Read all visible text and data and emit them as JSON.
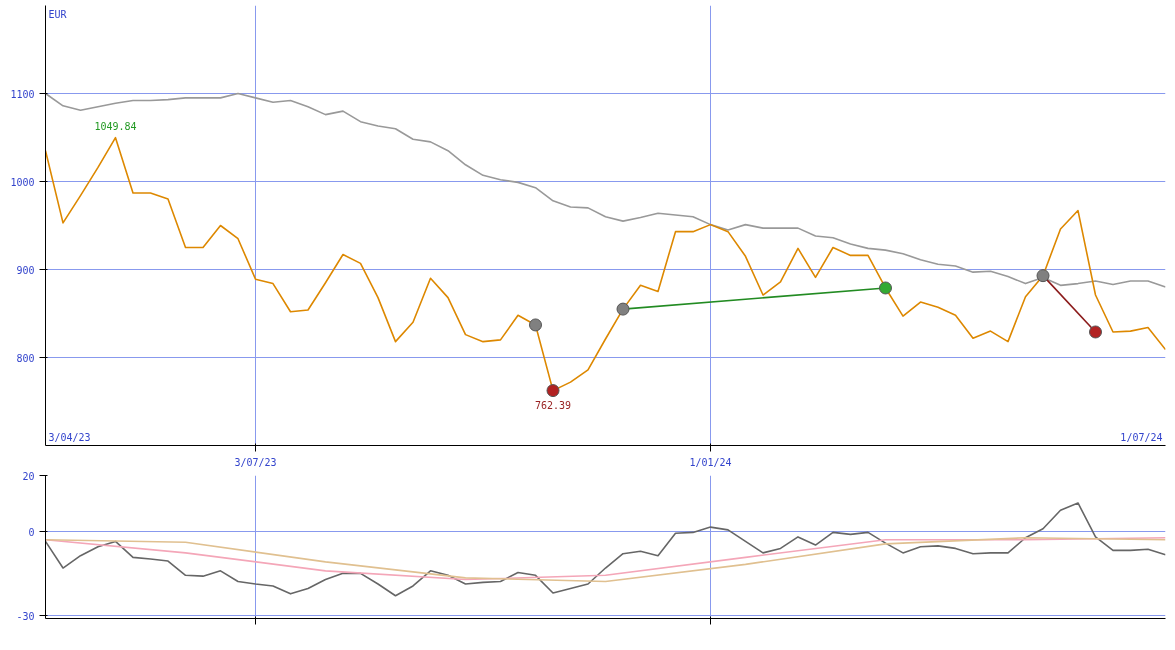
{
  "chart_data": [
    {
      "type": "line",
      "xlim": [
        "2023-04-10",
        "2024-07-01"
      ],
      "ylim": [
        700,
        1200
      ],
      "xticks": [
        {
          "value": "2023-07-03",
          "label": "3/07/23"
        },
        {
          "value": "2024-01-01",
          "label": "1/01/24"
        }
      ],
      "yticks": [
        800,
        900,
        1000,
        1100
      ],
      "grid": true,
      "line_style": "solid",
      "marker": "none",
      "annotations": [
        "EUR",
        "3/04/23",
        "1/07/24",
        {
          "text": "1049.84",
          "x": "2023-05-08",
          "y": 1049.84
        },
        {
          "text": "762.39",
          "x": "2023-10-30",
          "y": 762.39
        }
      ],
      "x": [
        "2023-04-10",
        "2023-04-17",
        "2023-04-24",
        "2023-05-01",
        "2023-05-08",
        "2023-05-15",
        "2023-05-22",
        "2023-05-29",
        "2023-06-05",
        "2023-06-12",
        "2023-06-19",
        "2023-06-26",
        "2023-07-03",
        "2023-07-10",
        "2023-07-17",
        "2023-07-24",
        "2023-07-31",
        "2023-08-07",
        "2023-08-14",
        "2023-08-21",
        "2023-08-28",
        "2023-09-04",
        "2023-09-11",
        "2023-09-18",
        "2023-09-25",
        "2023-10-02",
        "2023-10-09",
        "2023-10-16",
        "2023-10-23",
        "2023-10-30",
        "2023-11-06",
        "2023-11-13",
        "2023-11-20",
        "2023-11-27",
        "2023-12-04",
        "2023-12-11",
        "2023-12-18",
        "2023-12-25",
        "2024-01-01",
        "2024-01-08",
        "2024-01-15",
        "2024-01-22",
        "2024-01-29",
        "2024-02-05",
        "2024-02-12",
        "2024-02-19",
        "2024-02-26",
        "2024-03-04",
        "2024-03-11",
        "2024-03-18",
        "2024-03-25",
        "2024-04-01",
        "2024-04-08",
        "2024-04-15",
        "2024-04-22",
        "2024-04-29",
        "2024-05-06",
        "2024-05-13",
        "2024-05-20",
        "2024-05-27",
        "2024-06-03",
        "2024-06-10",
        "2024-06-17",
        "2024-06-24",
        "2024-07-01"
      ],
      "series": [
        {
          "color": "#999999",
          "values": [
            1100,
            1086,
            1081,
            1085,
            1089,
            1092,
            1092,
            1093,
            1095,
            1095,
            1095,
            1100,
            1095,
            1090,
            1092,
            1085,
            1076,
            1080,
            1068,
            1063,
            1060,
            1048,
            1045,
            1035,
            1019,
            1007,
            1002,
            999,
            993,
            978,
            971,
            970,
            960,
            955,
            959,
            964,
            962,
            960,
            951,
            945,
            951,
            947,
            947,
            947,
            938,
            936,
            929,
            924,
            922,
            918,
            911,
            906,
            904,
            897,
            898,
            892,
            884,
            891,
            882,
            884,
            887,
            883,
            887,
            887,
            880
          ]
        },
        {
          "color": "#dd8800",
          "values": [
            1035,
            953,
            984,
            1016,
            1049.84,
            987,
            987,
            980,
            925,
            925,
            950,
            935,
            889,
            884,
            852,
            854,
            885,
            917,
            907,
            868,
            818,
            840,
            890,
            868,
            826,
            818,
            820,
            848,
            837,
            762.39,
            772,
            786,
            821,
            855,
            882,
            875,
            943,
            943,
            951,
            943,
            915,
            871,
            886,
            924,
            891,
            925,
            916,
            916,
            879,
            847,
            863,
            857,
            848,
            822,
            830,
            818,
            869,
            893,
            946,
            967,
            871,
            829,
            830,
            834,
            809
          ]
        },
        {
          "color": "#228b22",
          "x": [
            "2023-11-27",
            "2024-03-11"
          ],
          "values": [
            855,
            879
          ]
        },
        {
          "color": "#8b1a1a",
          "x": [
            "2024-05-13",
            "2024-06-03"
          ],
          "values": [
            893,
            829
          ]
        },
        {
          "type": "scatter",
          "marker": "circle",
          "x": [
            "2023-10-23",
            "2023-10-30",
            "2023-11-27",
            "2024-03-11",
            "2024-05-13",
            "2024-06-03"
          ],
          "values": [
            837,
            762.39,
            855,
            879,
            893,
            829
          ],
          "colors": [
            "#808080",
            "#b22222",
            "#808080",
            "#33aa33",
            "#808080",
            "#b22222"
          ]
        }
      ]
    },
    {
      "type": "line",
      "xlim": [
        "2023-04-10",
        "2024-07-01"
      ],
      "ylim": [
        -31,
        20
      ],
      "xticks": [
        {
          "value": "2023-07-03",
          "label": null
        },
        {
          "value": "2024-01-01",
          "label": null
        }
      ],
      "yticks": [
        20,
        0,
        -30
      ],
      "grid": true,
      "tick_labels": "y",
      "line_style": "solid",
      "marker": "none",
      "series": [
        {
          "color": "#666666",
          "x": [
            "2023-04-10",
            "2023-04-17",
            "2023-04-24",
            "2023-05-01",
            "2023-05-08",
            "2023-05-15",
            "2023-05-22",
            "2023-05-29",
            "2023-06-05",
            "2023-06-12",
            "2023-06-19",
            "2023-06-26",
            "2023-07-03",
            "2023-07-10",
            "2023-07-17",
            "2023-07-24",
            "2023-07-31",
            "2023-08-07",
            "2023-08-14",
            "2023-08-21",
            "2023-08-28",
            "2023-09-04",
            "2023-09-11",
            "2023-09-18",
            "2023-09-25",
            "2023-10-02",
            "2023-10-09",
            "2023-10-16",
            "2023-10-23",
            "2023-10-30",
            "2023-11-06",
            "2023-11-13",
            "2023-11-20",
            "2023-11-27",
            "2023-12-04",
            "2023-12-11",
            "2023-12-18",
            "2023-12-25",
            "2024-01-01",
            "2024-01-08",
            "2024-01-15",
            "2024-01-22",
            "2024-01-29",
            "2024-02-05",
            "2024-02-12",
            "2024-02-19",
            "2024-02-26",
            "2024-03-04",
            "2024-03-11",
            "2024-03-18",
            "2024-03-25",
            "2024-04-01",
            "2024-04-08",
            "2024-04-15",
            "2024-04-22",
            "2024-04-29",
            "2024-05-06",
            "2024-05-13",
            "2024-05-20",
            "2024-05-27",
            "2024-06-03",
            "2024-06-10",
            "2024-06-17",
            "2024-06-24",
            "2024-07-01"
          ],
          "values": [
            -3.5,
            -13,
            -8.6,
            -5.4,
            -3.5,
            -9.2,
            -9.8,
            -10.5,
            -15.6,
            -15.9,
            -14,
            -17.8,
            -18.7,
            -19.4,
            -22.2,
            -20.3,
            -17.1,
            -14.9,
            -14.9,
            -18.7,
            -22.9,
            -19.4,
            -14,
            -15.6,
            -18.7,
            -18.1,
            -17.8,
            -14.6,
            -15.6,
            -21.9,
            -20.3,
            -18.7,
            -13,
            -7.9,
            -7,
            -8.6,
            -0.6,
            -0.3,
            1.6,
            0.6,
            -3.5,
            -7.6,
            -6,
            -1.9,
            -4.8,
            -0.3,
            -1,
            -0.3,
            -4.1,
            -7.6,
            -5.4,
            -5.1,
            -6,
            -7.9,
            -7.6,
            -7.6,
            -2.2,
            1,
            7.6,
            10.2,
            -1.9,
            -6.7,
            -6.7,
            -6.3,
            -8.3
          ]
        },
        {
          "color": "#f4a6b8",
          "x": [
            "2023-04-10",
            "2023-06-05",
            "2023-07-31",
            "2023-09-25",
            "2023-11-20",
            "2024-01-15",
            "2024-03-11",
            "2024-05-06",
            "2024-07-01"
          ],
          "values": [
            -2.9,
            -7.6,
            -14,
            -17.1,
            -15.6,
            -9.2,
            -2.9,
            -2.9,
            -2.2
          ]
        },
        {
          "color": "#e0c090",
          "x": [
            "2023-04-10",
            "2023-06-05",
            "2023-07-31",
            "2023-09-25",
            "2023-11-20",
            "2024-01-15",
            "2024-03-11",
            "2024-05-06",
            "2024-07-01"
          ],
          "values": [
            -2.9,
            -3.8,
            -10.8,
            -16.5,
            -17.8,
            -11.7,
            -4.4,
            -2.2,
            -2.9
          ]
        }
      ]
    }
  ]
}
